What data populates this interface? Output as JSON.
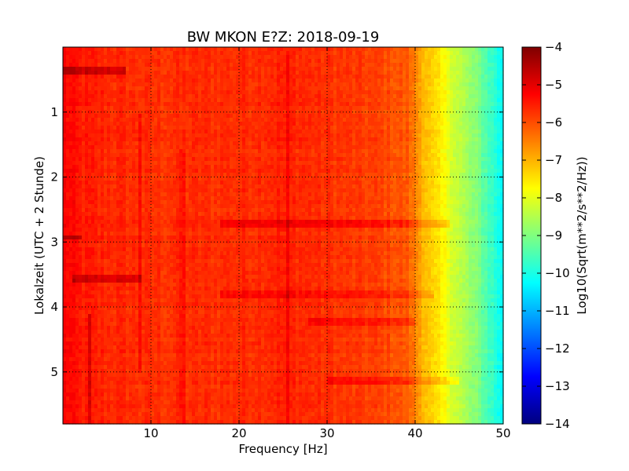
{
  "chart_data": {
    "type": "heatmap",
    "title": "BW MKON E?Z: 2018-09-19",
    "xlabel": "Frequency [Hz]",
    "ylabel": "Lokalzeit (UTC + 2 Stunde)",
    "xlim": [
      0,
      50
    ],
    "ylim": [
      5.8,
      0
    ],
    "x_ticks": [
      10,
      20,
      30,
      40,
      50
    ],
    "y_ticks": [
      1,
      2,
      3,
      4,
      5
    ],
    "grid": true,
    "colormap": "jet",
    "colorbar": {
      "label": "Log10(Sqrt(m**2/s**2/Hz))",
      "range": [
        -14,
        -4
      ],
      "ticks": [
        -4,
        -5,
        -6,
        -7,
        -8,
        -9,
        -10,
        -11,
        -12,
        -13,
        -14
      ]
    },
    "value_profile_by_frequency": {
      "frequency_hz": [
        0,
        2,
        5,
        10,
        20,
        25,
        30,
        36,
        39,
        40,
        41,
        42,
        43,
        44,
        45,
        46,
        47,
        48,
        49,
        50
      ],
      "log10_amplitude": [
        -5.2,
        -5.5,
        -5.6,
        -5.7,
        -5.65,
        -5.55,
        -5.7,
        -5.9,
        -6.1,
        -6.5,
        -7.0,
        -7.4,
        -7.7,
        -8.0,
        -8.4,
        -8.7,
        -9.0,
        -9.4,
        -9.8,
        -10.3
      ]
    },
    "horizontal_bands": [
      {
        "time_h": 0.35,
        "fmin": 0,
        "fmax": 7,
        "delta": 0.8
      },
      {
        "time_h": 2.93,
        "fmin": 0,
        "fmax": 2,
        "delta": 0.8
      },
      {
        "time_h": 3.55,
        "fmin": 1,
        "fmax": 9,
        "delta": 0.7
      },
      {
        "time_h": 2.72,
        "fmin": 18,
        "fmax": 44,
        "delta": 0.45
      },
      {
        "time_h": 3.8,
        "fmin": 18,
        "fmax": 42,
        "delta": 0.35
      },
      {
        "time_h": 4.22,
        "fmin": 28,
        "fmax": 40,
        "delta": 0.4
      },
      {
        "time_h": 5.15,
        "fmin": 30,
        "fmax": 45,
        "delta": 0.4
      }
    ],
    "vertical_bands": [
      {
        "freq_hz": 8.8,
        "tmin": 1.0,
        "tmax": 5.0,
        "delta": 0.45
      },
      {
        "freq_hz": 13.6,
        "tmin": 1.6,
        "tmax": 5.8,
        "delta": 0.25
      },
      {
        "freq_hz": 25.5,
        "tmin": 0.1,
        "tmax": 5.8,
        "delta": 0.3
      },
      {
        "freq_hz": 3.0,
        "tmin": 4.1,
        "tmax": 5.8,
        "delta": 0.6
      }
    ]
  }
}
